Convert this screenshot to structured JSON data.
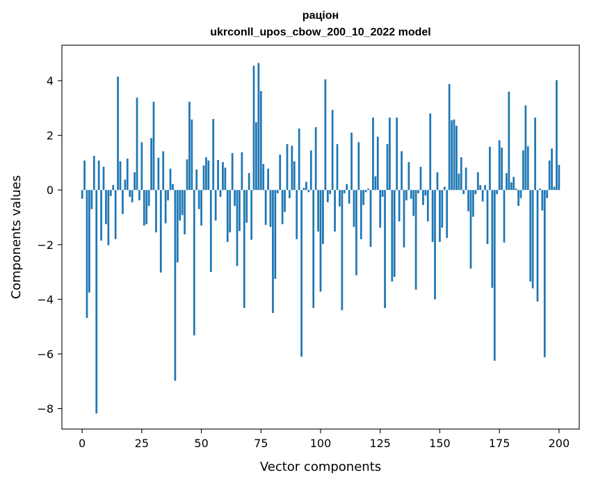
{
  "chart_data": {
    "type": "bar",
    "title": "раціон",
    "subtitle": "ukrconll_upos_cbow_200_10_2022 model",
    "xlabel": "Vector components",
    "ylabel": "Components values",
    "xlim": [
      -8.5,
      208.5
    ],
    "ylim": [
      -8.75,
      5.3
    ],
    "xticks": [
      0,
      25,
      50,
      75,
      100,
      125,
      150,
      175,
      200
    ],
    "yticks": [
      -8,
      -6,
      -4,
      -2,
      0,
      2,
      4
    ],
    "ytick_labels": [
      "−8",
      "−6",
      "−4",
      "−2",
      "0",
      "2",
      "4"
    ],
    "grid": false,
    "legend": false,
    "bar_color": "#1f77b4",
    "series": [
      {
        "values": [
          -0.32,
          1.08,
          -4.68,
          -3.75,
          -0.7,
          1.25,
          -8.18,
          1.08,
          -1.85,
          0.85,
          -1.25,
          -2.02,
          -0.22,
          0.18,
          -1.8,
          4.15,
          1.05,
          -0.88,
          0.38,
          1.15,
          -0.25,
          -0.45,
          0.65,
          3.38,
          -0.38,
          1.75,
          -1.3,
          -1.25,
          -0.58,
          1.9,
          3.23,
          -1.55,
          1.18,
          -3.02,
          1.42,
          -1.22,
          -0.38,
          0.78,
          0.22,
          -6.98,
          -2.65,
          -1.12,
          -0.92,
          -1.62,
          1.12,
          3.23,
          2.58,
          -5.32,
          0.75,
          -0.7,
          -1.3,
          0.9,
          1.2,
          1.08,
          -3.0,
          2.6,
          -1.12,
          1.1,
          -0.25,
          1.02,
          0.82,
          -1.9,
          -1.55,
          1.35,
          -0.58,
          -2.78,
          -1.5,
          1.38,
          -4.32,
          -1.2,
          0.62,
          -1.82,
          4.55,
          2.48,
          4.65,
          3.62,
          0.95,
          -1.28,
          0.78,
          -1.35,
          -4.5,
          -3.25,
          -0.12,
          1.3,
          -1.25,
          -0.8,
          1.68,
          -0.3,
          1.62,
          1.05,
          -1.8,
          2.25,
          -6.1,
          0.08,
          0.3,
          -0.08,
          1.45,
          -4.32,
          2.3,
          -1.52,
          -3.72,
          -1.98,
          4.05,
          -0.45,
          -0.15,
          2.93,
          -1.52,
          1.68,
          -0.6,
          -4.4,
          -0.12,
          0.22,
          -0.5,
          2.1,
          -1.35,
          -3.12,
          1.75,
          -1.8,
          -0.55,
          -0.08,
          0.05,
          -2.08,
          2.65,
          0.5,
          1.95,
          -1.38,
          -0.25,
          -4.32,
          1.68,
          2.65,
          -3.35,
          -3.18,
          2.65,
          -1.15,
          1.42,
          -2.1,
          -0.38,
          1.02,
          -0.32,
          -0.95,
          -3.65,
          -0.12,
          0.85,
          -0.55,
          -0.2,
          -1.15,
          2.8,
          -1.9,
          -4.0,
          0.65,
          -1.9,
          -1.38,
          0.12,
          -1.75,
          3.88,
          2.55,
          2.58,
          2.35,
          0.6,
          1.2,
          -0.15,
          0.82,
          -0.78,
          -2.88,
          -0.98,
          -0.15,
          0.65,
          0.18,
          -0.42,
          0.18,
          -1.98,
          1.58,
          -3.58,
          -6.25,
          -0.15,
          1.82,
          1.55,
          -1.92,
          0.62,
          3.6,
          0.28,
          0.48,
          0.05,
          -0.58,
          -0.3,
          1.45,
          3.1,
          1.6,
          -3.35,
          -3.6,
          2.65,
          -4.08,
          0.05,
          -0.75,
          -6.12,
          -0.3,
          1.08,
          1.52,
          0.12,
          4.02,
          0.92
        ]
      }
    ]
  }
}
